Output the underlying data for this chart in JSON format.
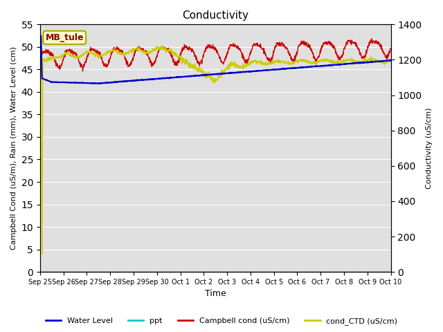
{
  "title": "Conductivity",
  "xlabel": "Time",
  "ylabel_left": "Campbell Cond (uS/m), Rain (mm), Water Level (cm)",
  "ylabel_right": "Conductivity (uS/cm)",
  "ylim_left": [
    0,
    55
  ],
  "ylim_right": [
    0,
    1400
  ],
  "yticks_left": [
    0,
    5,
    10,
    15,
    20,
    25,
    30,
    35,
    40,
    45,
    50,
    55
  ],
  "yticks_right": [
    0,
    200,
    400,
    600,
    800,
    1000,
    1200,
    1400
  ],
  "num_days": 15,
  "xtick_labels": [
    "Sep 25",
    "Sep 26",
    "Sep 27",
    "Sep 28",
    "Sep 29",
    "Sep 30",
    "Oct 1",
    "Oct 2",
    "Oct 3",
    "Oct 4",
    "Oct 5",
    "Oct 6",
    "Oct 7",
    "Oct 8",
    "Oct 9",
    "Oct 10"
  ],
  "bg_color": "#e0e0e0",
  "site_label": "MB_tule",
  "site_label_bg": "#ffffcc",
  "site_label_border": "#aaaa00",
  "water_level_color": "#0000cc",
  "ppt_color": "#00cccc",
  "campbell_cond_color": "#cc0000",
  "cond_CTD_color": "#cccc00",
  "legend_labels": [
    "Water Level",
    "ppt",
    "Campbell cond (uS/cm)",
    "cond_CTD (uS/cm)"
  ]
}
